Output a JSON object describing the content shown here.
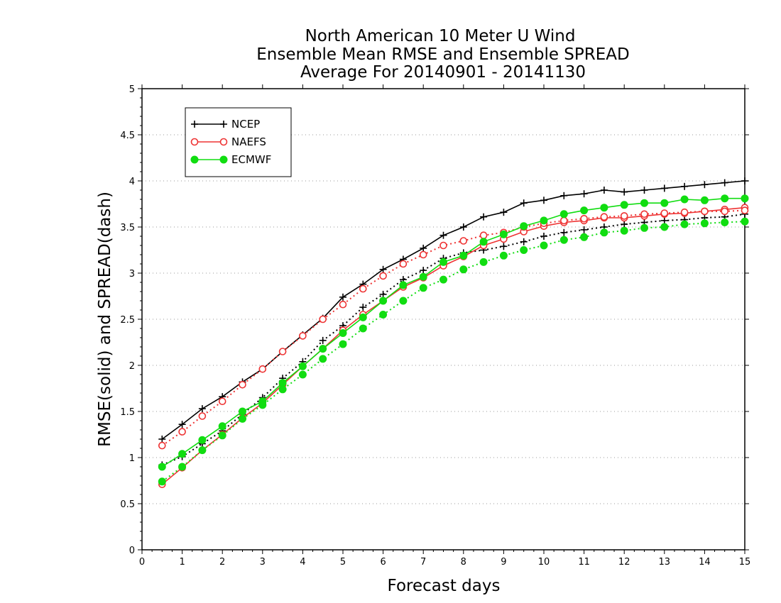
{
  "chart_data": {
    "type": "line",
    "title_lines": [
      "North American 10 Meter U Wind",
      "Ensemble Mean RMSE and Ensemble SPREAD",
      "Average For 20140901 - 20141130"
    ],
    "xlabel": "Forecast days",
    "ylabel": "RMSE(solid) and SPREAD(dash)",
    "xlim": [
      0,
      15
    ],
    "ylim": [
      0,
      5
    ],
    "xticks": [
      "0",
      "1",
      "2",
      "3",
      "4",
      "5",
      "6",
      "7",
      "8",
      "9",
      "10",
      "11",
      "12",
      "13",
      "14",
      "15"
    ],
    "yticks": [
      "0",
      "0.5",
      "1",
      "1.5",
      "2",
      "2.5",
      "3",
      "3.5",
      "4",
      "4.5",
      "5"
    ],
    "grid": true,
    "legend_position": "top-left",
    "x": [
      0.5,
      1,
      1.5,
      2,
      2.5,
      3,
      3.5,
      4,
      4.5,
      5,
      5.5,
      6,
      6.5,
      7,
      7.5,
      8,
      8.5,
      9,
      9.5,
      10,
      10.5,
      11,
      11.5,
      12,
      12.5,
      13,
      13.5,
      14,
      14.5,
      15
    ],
    "series": [
      {
        "name": "NCEP",
        "color": "#000000",
        "marker": "plus",
        "rmse": [
          1.2,
          1.36,
          1.53,
          1.66,
          1.82,
          1.96,
          2.15,
          2.33,
          2.51,
          2.74,
          2.88,
          3.04,
          3.15,
          3.27,
          3.41,
          3.5,
          3.61,
          3.66,
          3.76,
          3.79,
          3.84,
          3.86,
          3.9,
          3.88,
          3.9,
          3.92,
          3.94,
          3.96,
          3.98,
          4.0
        ],
        "spread": [
          0.92,
          1.01,
          1.15,
          1.29,
          1.47,
          1.65,
          1.86,
          2.04,
          2.27,
          2.43,
          2.63,
          2.77,
          2.93,
          3.03,
          3.16,
          3.22,
          3.25,
          3.29,
          3.34,
          3.4,
          3.44,
          3.47,
          3.5,
          3.53,
          3.55,
          3.57,
          3.58,
          3.6,
          3.61,
          3.64
        ]
      },
      {
        "name": "NAEFS",
        "color": "#ee3333",
        "marker": "open-circle",
        "rmse": [
          0.71,
          0.89,
          1.08,
          1.25,
          1.43,
          1.59,
          1.79,
          1.99,
          2.18,
          2.38,
          2.55,
          2.7,
          2.85,
          2.95,
          3.08,
          3.18,
          3.3,
          3.37,
          3.45,
          3.51,
          3.55,
          3.57,
          3.6,
          3.6,
          3.62,
          3.64,
          3.65,
          3.67,
          3.69,
          3.71
        ],
        "spread": [
          1.13,
          1.28,
          1.45,
          1.61,
          1.79,
          1.96,
          2.15,
          2.32,
          2.5,
          2.66,
          2.83,
          2.97,
          3.1,
          3.2,
          3.3,
          3.35,
          3.41,
          3.44,
          3.5,
          3.54,
          3.57,
          3.59,
          3.61,
          3.62,
          3.64,
          3.65,
          3.66,
          3.67,
          3.67,
          3.68
        ]
      },
      {
        "name": "ECMWF",
        "color": "#11dd11",
        "marker": "filled-circle",
        "rmse": [
          0.9,
          1.04,
          1.19,
          1.34,
          1.5,
          1.61,
          1.81,
          1.99,
          2.18,
          2.35,
          2.52,
          2.7,
          2.87,
          2.96,
          3.12,
          3.19,
          3.34,
          3.42,
          3.51,
          3.57,
          3.64,
          3.68,
          3.71,
          3.74,
          3.76,
          3.76,
          3.8,
          3.79,
          3.81,
          3.81
        ],
        "spread": [
          0.74,
          0.9,
          1.08,
          1.24,
          1.42,
          1.57,
          1.74,
          1.9,
          2.07,
          2.23,
          2.4,
          2.55,
          2.7,
          2.84,
          2.93,
          3.04,
          3.12,
          3.19,
          3.25,
          3.3,
          3.36,
          3.39,
          3.44,
          3.46,
          3.49,
          3.5,
          3.53,
          3.54,
          3.55,
          3.56
        ]
      }
    ]
  }
}
